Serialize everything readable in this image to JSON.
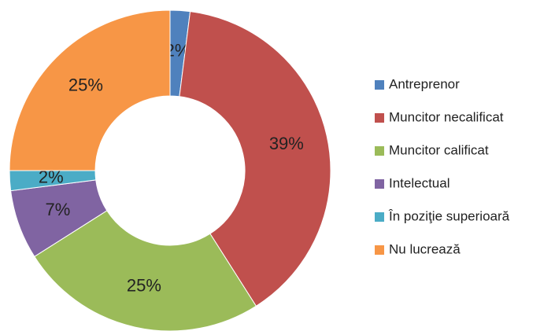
{
  "chart_data": {
    "type": "donut",
    "categories": [
      "Antreprenor",
      "Muncitor necalificat",
      "Muncitor calificat",
      "Intelectual",
      "În poziţie superioară",
      "Nu lucrează"
    ],
    "values": [
      2,
      39,
      25,
      7,
      2,
      25
    ],
    "value_labels": [
      "2%",
      "39%",
      "25%",
      "7%",
      "2%",
      "25%"
    ],
    "colors": [
      "#4f81bd",
      "#c0504d",
      "#9bbb59",
      "#8064a2",
      "#4bacc6",
      "#f79646"
    ],
    "legend": "right"
  }
}
